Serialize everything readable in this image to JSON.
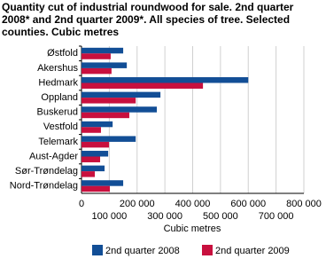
{
  "chart_data": {
    "type": "hbar",
    "title": "Quantity cut of industrial roundwood for sale. 2nd quarter 2008* and 2nd quarter 2009*. All species of tree. Selected counties. Cubic metres",
    "categories": [
      "Østfold",
      "Akershus",
      "Hedmark",
      "Oppland",
      "Buskerud",
      "Vestfold",
      "Telemark",
      "Aust-Agder",
      "Sør-Trøndelag",
      "Nord-Trøndelag"
    ],
    "series": [
      {
        "name": "2nd quarter 2008",
        "color": "#124e96",
        "values": [
          150000,
          163000,
          600000,
          284000,
          271000,
          112000,
          195000,
          96000,
          83000,
          150000
        ]
      },
      {
        "name": "2nd quarter 2009",
        "color": "#c8103e",
        "values": [
          105000,
          108000,
          437000,
          195000,
          172000,
          70000,
          99000,
          67000,
          48000,
          102000
        ]
      }
    ],
    "xlabel": "Cubic metres",
    "xlim": [
      0,
      800000
    ],
    "xticks": [
      0,
      {
        "value": 100000,
        "label": "100 000"
      },
      {
        "value": 200000,
        "label": "200 000"
      },
      {
        "value": 300000,
        "label": "300 000"
      },
      {
        "value": 400000,
        "label": "400 000"
      },
      {
        "value": 500000,
        "label": "500 000"
      },
      {
        "value": 600000,
        "label": "600 000"
      },
      {
        "value": 700000,
        "label": "700 000"
      },
      {
        "value": 800000,
        "label": "800 000"
      }
    ],
    "grid": true,
    "legend": "bottom"
  }
}
